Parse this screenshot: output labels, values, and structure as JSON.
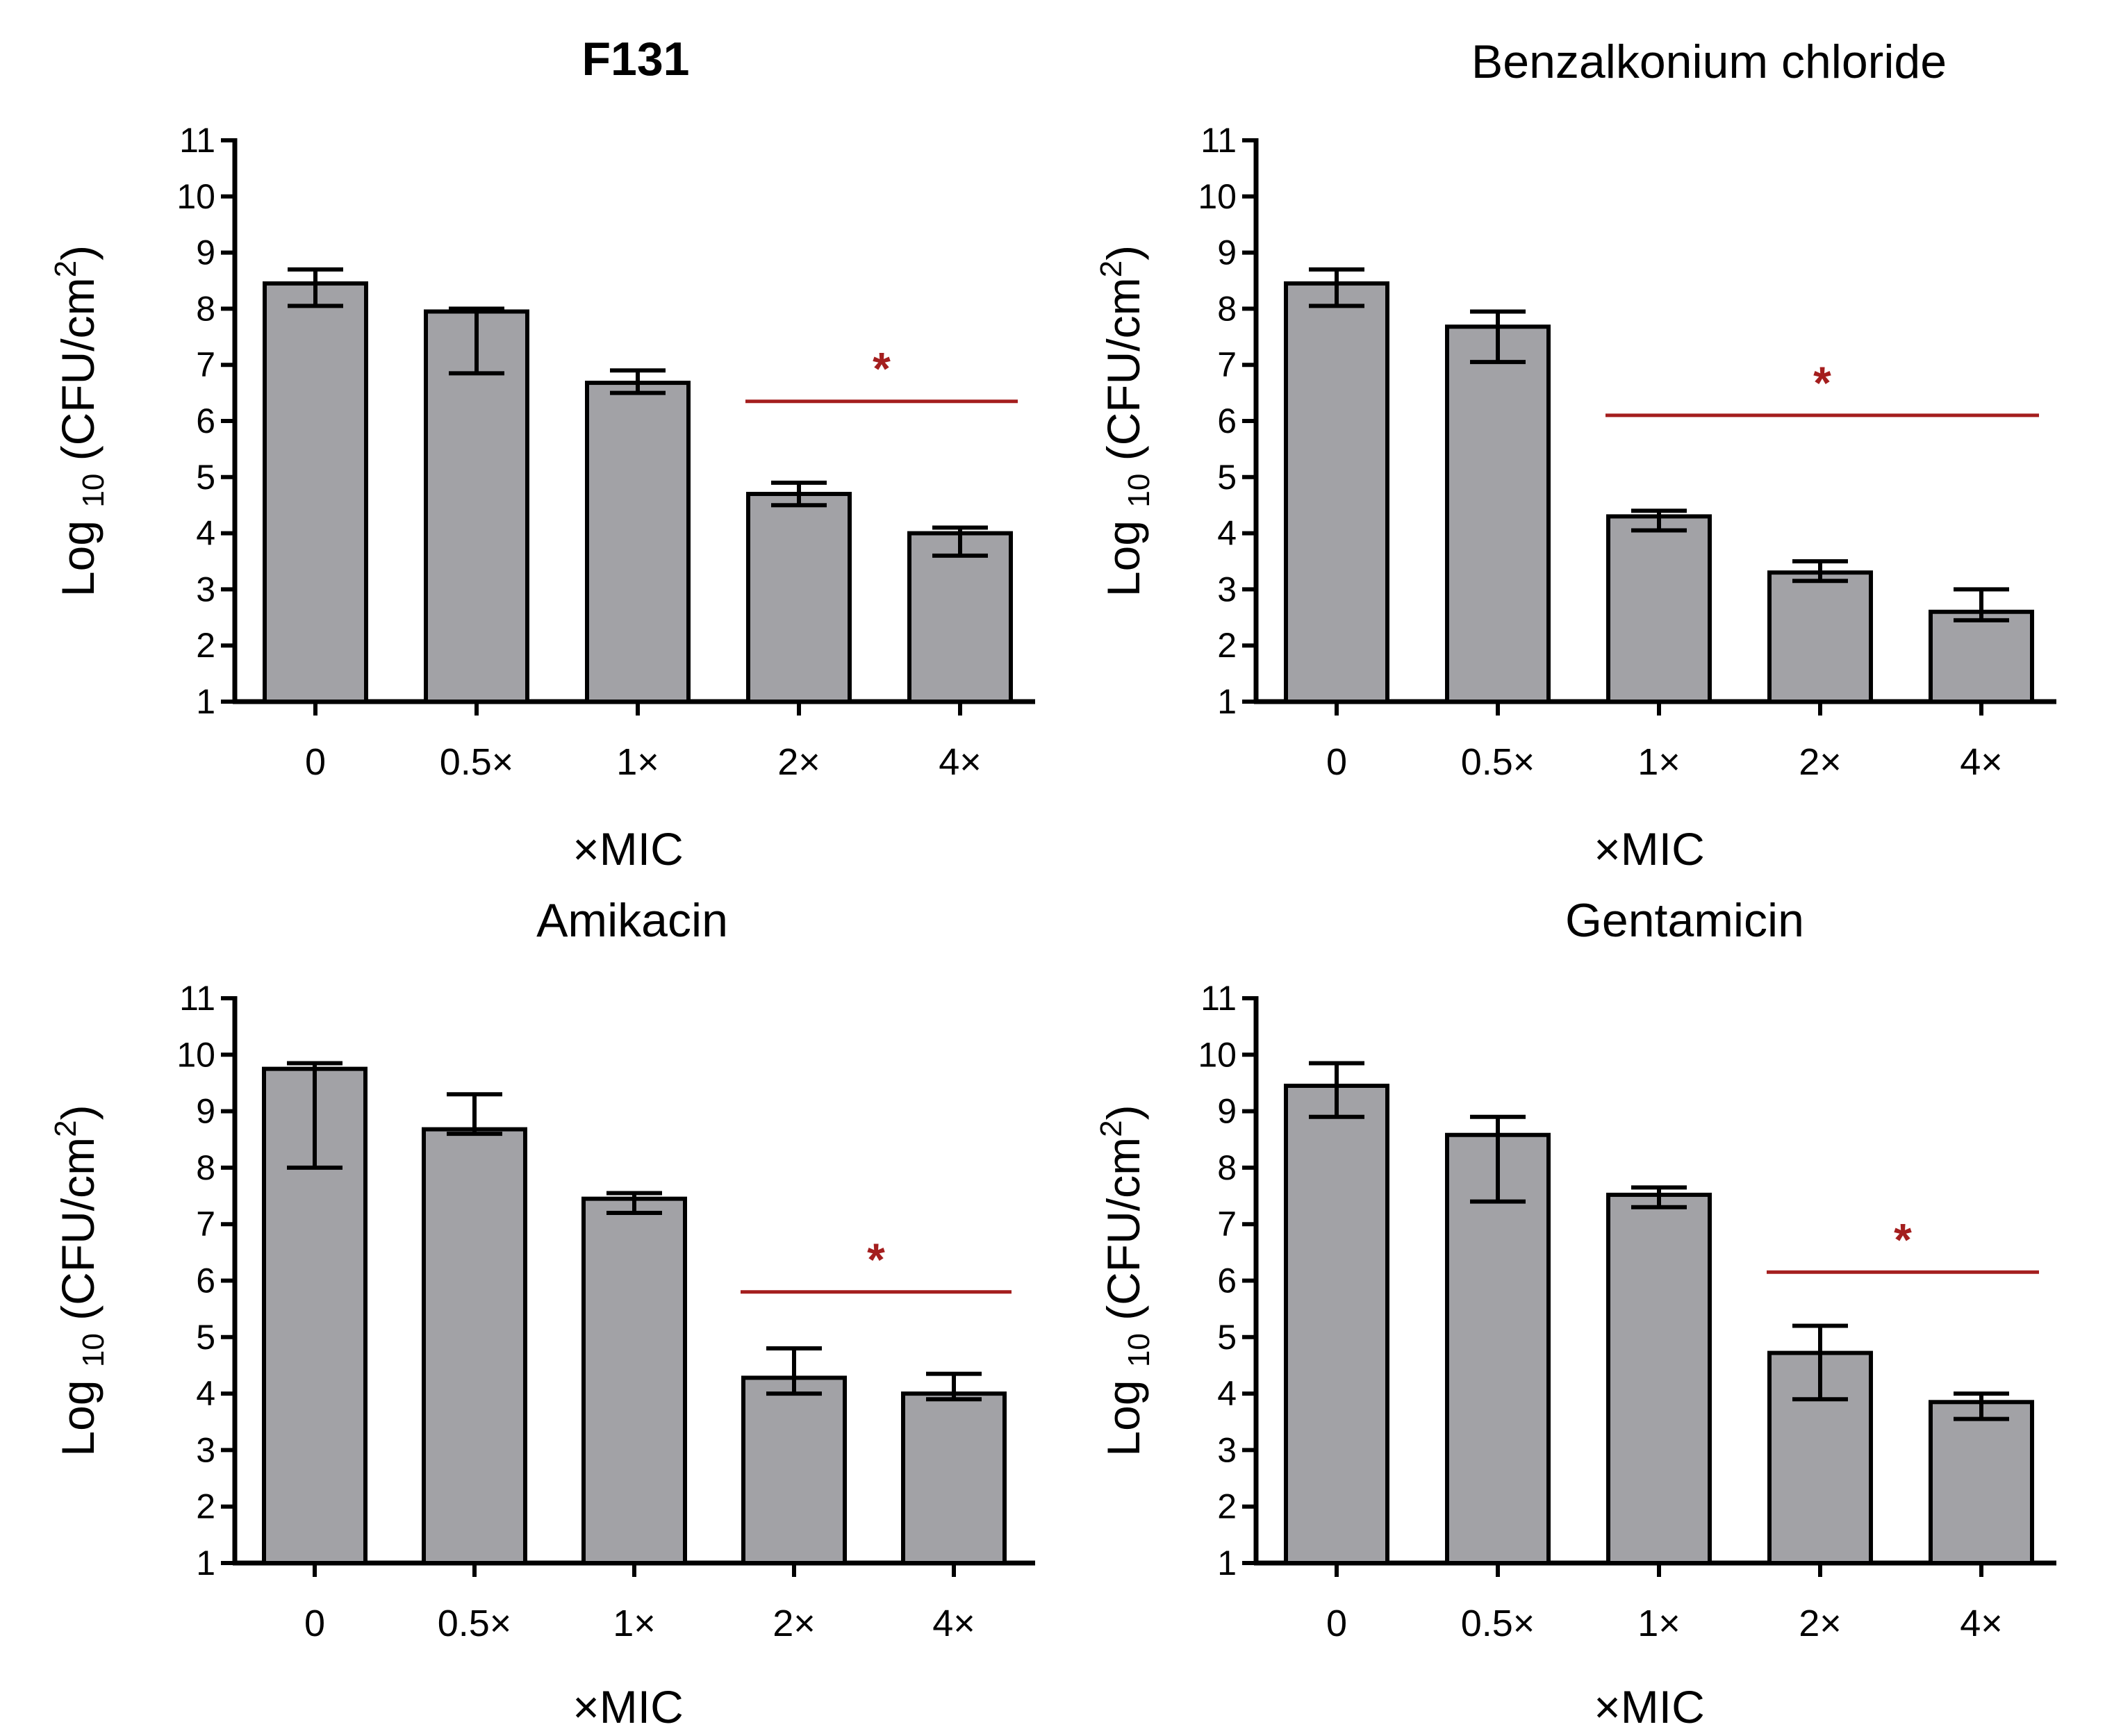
{
  "chart_data": [
    {
      "type": "bar",
      "title": "F131",
      "title_bold": true,
      "xlabel": "×MIC",
      "ylabel_prefix": "Log",
      "ylabel_subscript": "10",
      "ylabel_unit": "(CFU/cm",
      "ylabel_superscript": "2",
      "ylabel_close": ")",
      "ylim": [
        1,
        11
      ],
      "yticks": [
        "1",
        "2",
        "3",
        "4",
        "5",
        "6",
        "7",
        "8",
        "9",
        "10",
        "11"
      ],
      "categories": [
        "0",
        "0.5×",
        "1×",
        "2×",
        "4×"
      ],
      "values": [
        8.45,
        7.95,
        6.68,
        4.7,
        4.0
      ],
      "error_low": [
        8.05,
        6.85,
        6.5,
        4.5,
        3.6
      ],
      "error_high": [
        8.7,
        8.0,
        6.9,
        4.9,
        4.1
      ],
      "significance": {
        "label": "*",
        "from": 3,
        "to": 4,
        "y": 6.35
      },
      "color": "#a2a2a6"
    },
    {
      "type": "bar",
      "title": "Benzalkonium chloride",
      "title_bold": false,
      "xlabel": "×MIC",
      "ylabel_prefix": "Log",
      "ylabel_subscript": "10",
      "ylabel_unit": "(CFU/cm",
      "ylabel_superscript": "2",
      "ylabel_close": ")",
      "ylim": [
        1,
        11
      ],
      "yticks": [
        "1",
        "2",
        "3",
        "4",
        "5",
        "6",
        "7",
        "8",
        "9",
        "10",
        "11"
      ],
      "categories": [
        "0",
        "0.5×",
        "1×",
        "2×",
        "4×"
      ],
      "values": [
        8.45,
        7.68,
        4.3,
        3.3,
        2.6
      ],
      "error_low": [
        8.05,
        7.05,
        4.05,
        3.15,
        2.45
      ],
      "error_high": [
        8.7,
        7.95,
        4.4,
        3.5,
        3.0
      ],
      "significance": {
        "label": "*",
        "from": 2,
        "to": 4,
        "y": 6.1
      },
      "color": "#a2a2a6"
    },
    {
      "type": "bar",
      "title": "Amikacin",
      "title_bold": false,
      "xlabel": "×MIC",
      "ylabel_prefix": "Log",
      "ylabel_subscript": "10",
      "ylabel_unit": "(CFU/cm",
      "ylabel_superscript": "2",
      "ylabel_close": ")",
      "ylim": [
        1,
        11
      ],
      "yticks": [
        "1",
        "2",
        "3",
        "4",
        "5",
        "6",
        "7",
        "8",
        "9",
        "10",
        "11"
      ],
      "categories": [
        "0",
        "0.5×",
        "1×",
        "2×",
        "4×"
      ],
      "values": [
        9.75,
        8.68,
        7.45,
        4.28,
        4.0
      ],
      "error_low": [
        8.0,
        8.6,
        7.2,
        4.0,
        3.9
      ],
      "error_high": [
        9.85,
        9.3,
        7.55,
        4.8,
        4.35
      ],
      "significance": {
        "label": "*",
        "from": 3,
        "to": 4,
        "y": 5.8
      },
      "color": "#a2a2a6"
    },
    {
      "type": "bar",
      "title": "Gentamicin",
      "title_bold": false,
      "xlabel": "×MIC",
      "ylabel_prefix": "Log",
      "ylabel_subscript": "10",
      "ylabel_unit": "(CFU/cm",
      "ylabel_superscript": "2",
      "ylabel_close": ")",
      "ylim": [
        1,
        11
      ],
      "yticks": [
        "1",
        "2",
        "3",
        "4",
        "5",
        "6",
        "7",
        "8",
        "9",
        "10",
        "11"
      ],
      "categories": [
        "0",
        "0.5×",
        "1×",
        "2×",
        "4×"
      ],
      "values": [
        9.45,
        8.58,
        7.52,
        4.72,
        3.85
      ],
      "error_low": [
        8.9,
        7.4,
        7.3,
        3.9,
        3.55
      ],
      "error_high": [
        9.85,
        8.9,
        7.65,
        5.2,
        4.0
      ],
      "significance": {
        "label": "*",
        "from": 3,
        "to": 4,
        "y": 6.15
      },
      "color": "#a2a2a6"
    }
  ]
}
